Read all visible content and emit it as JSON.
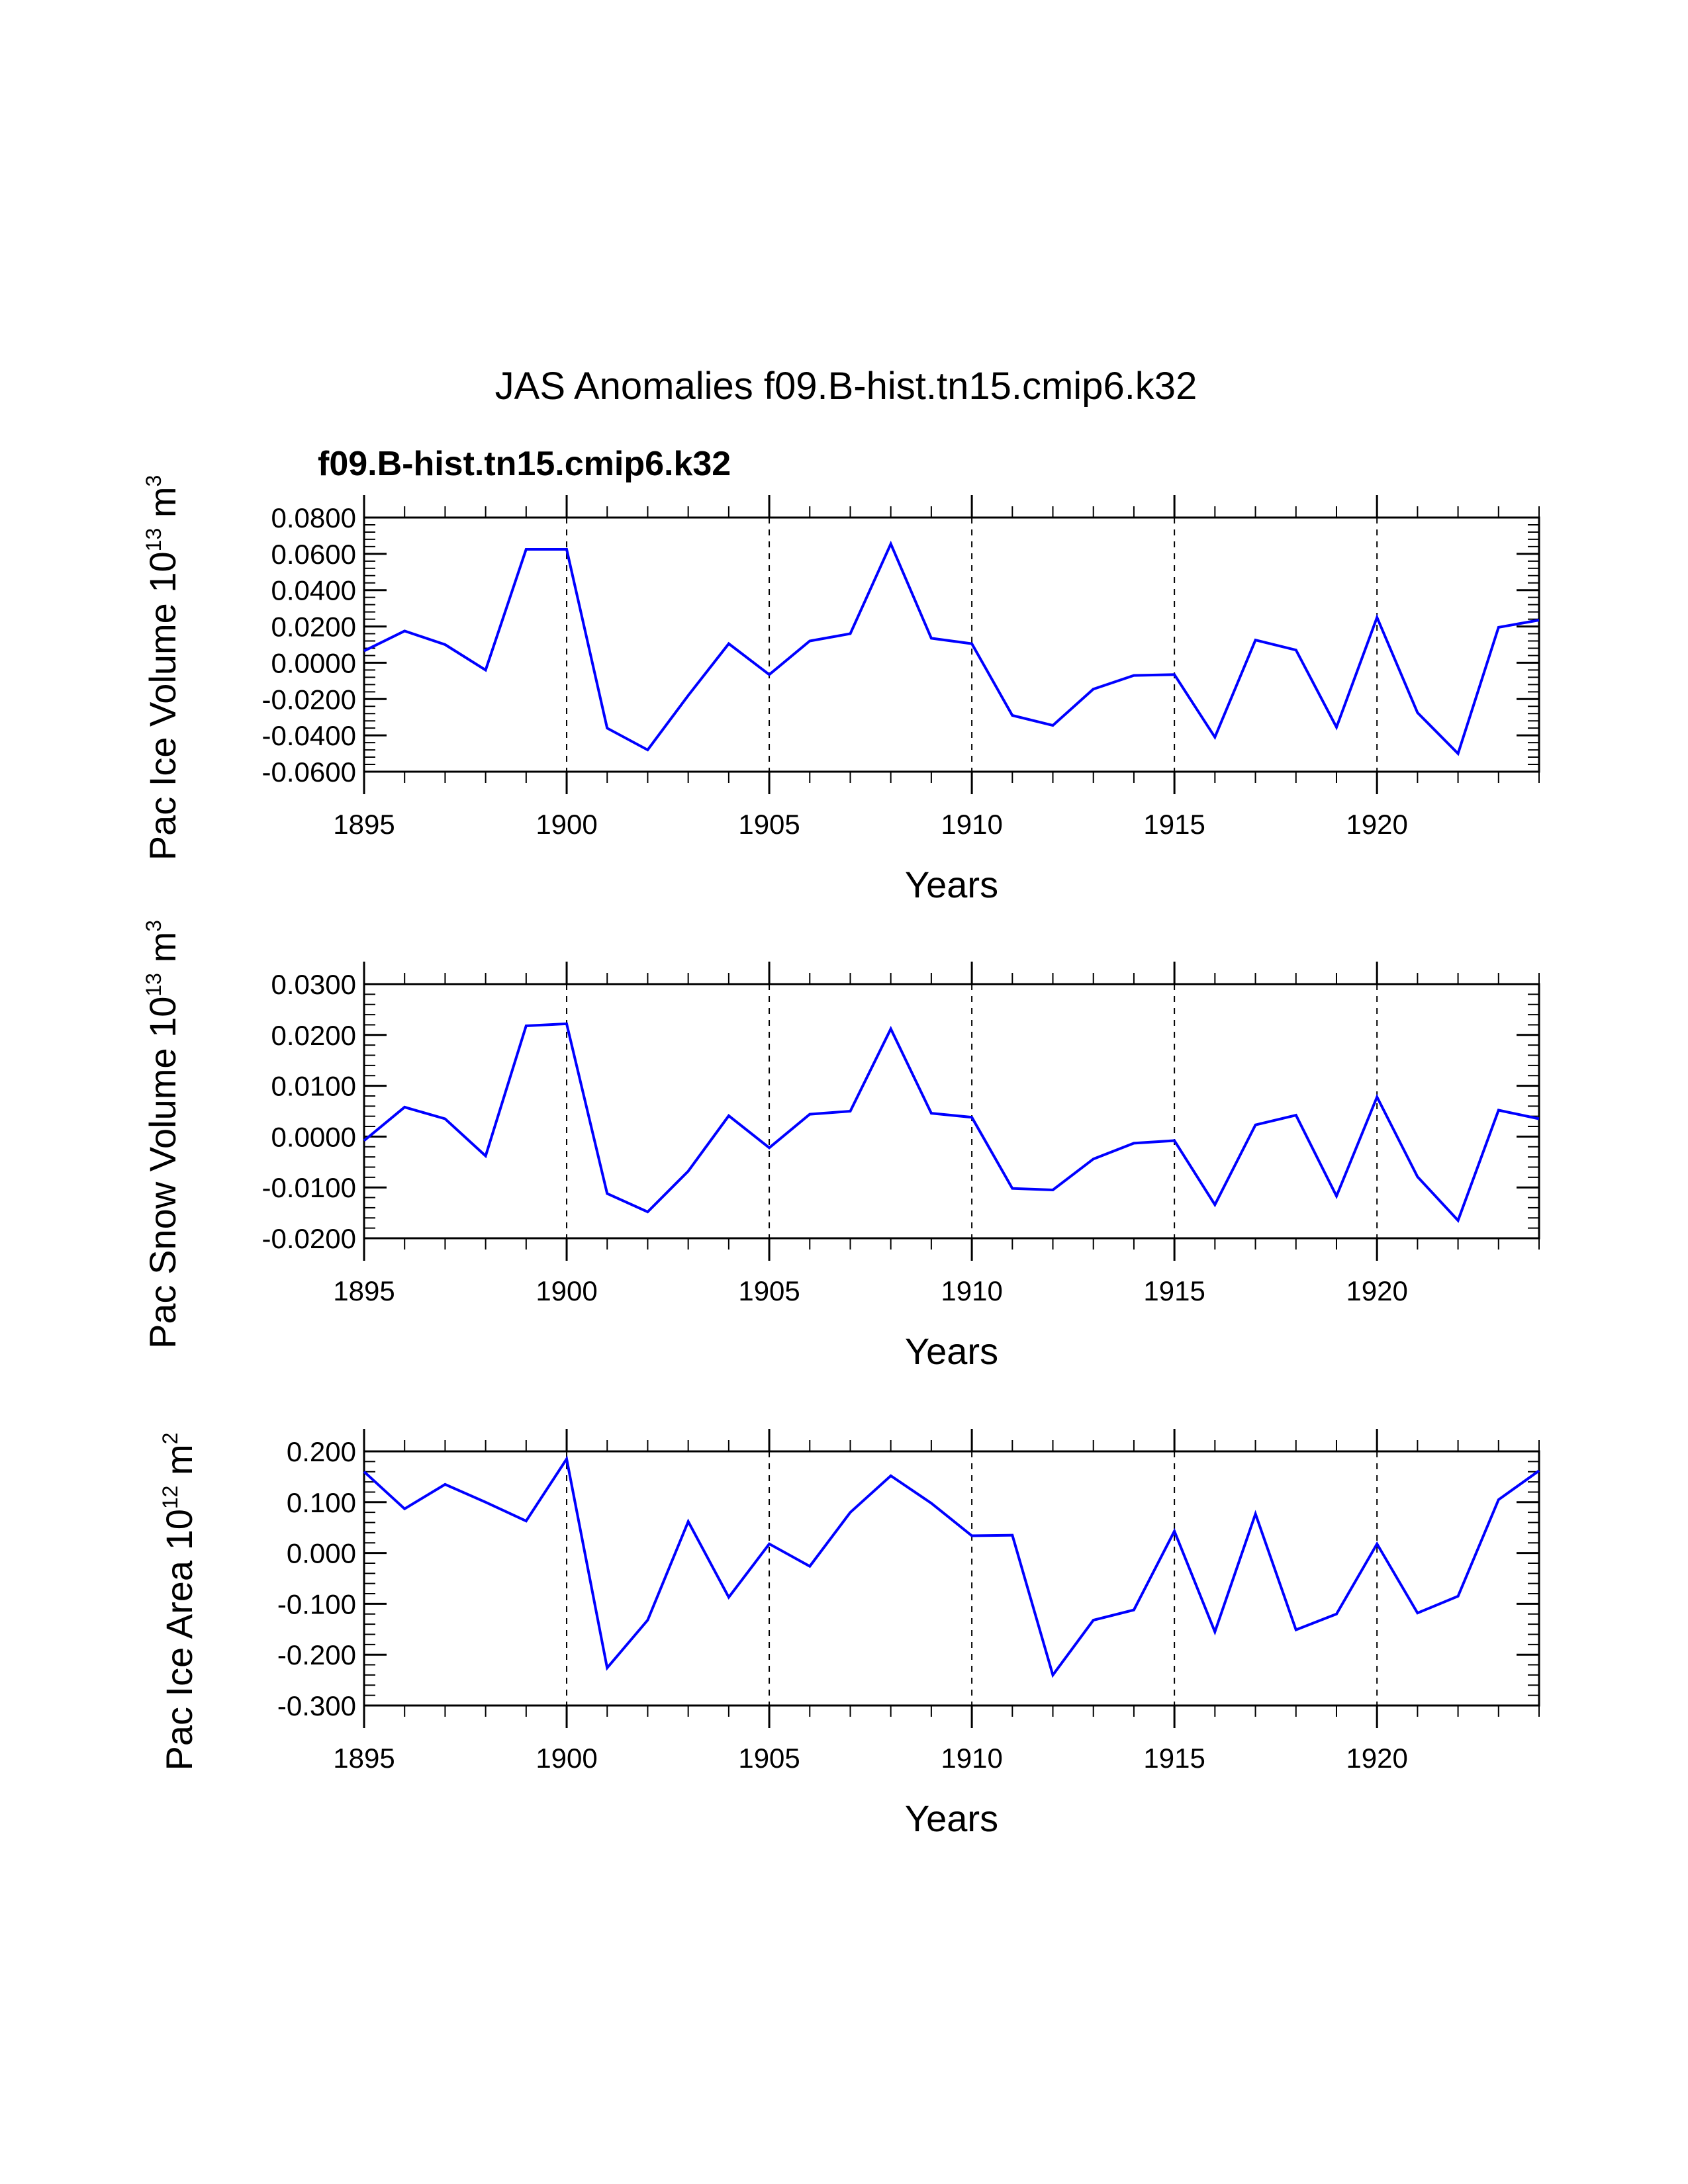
{
  "title": "JAS Anomalies f09.B-hist.tn15.cmip6.k32",
  "subtitle": "f09.B-hist.tn15.cmip6.k32",
  "colors": {
    "series": "#0000ff",
    "subtitle": "#0000ff",
    "axes": "#000000",
    "background": "#ffffff"
  },
  "chart_data": [
    {
      "type": "line",
      "xlabel": "Years",
      "ylabel": {
        "main": "Pac Ice Volume 10",
        "exponent": "13",
        "unit": " m",
        "unit_exponent": "3"
      },
      "xlim": [
        1895,
        1924
      ],
      "ylim": [
        -0.06,
        0.08
      ],
      "xticks": [
        1895,
        1900,
        1905,
        1910,
        1915,
        1920
      ],
      "xtick_labels": [
        "1895",
        "1900",
        "1905",
        "1910",
        "1915",
        "1920"
      ],
      "yticks": [
        -0.06,
        -0.04,
        -0.02,
        0.0,
        0.02,
        0.04,
        0.06,
        0.08
      ],
      "ytick_labels": [
        "-0.0600",
        "-0.0400",
        "-0.0200",
        "0.0000",
        "0.0200",
        "0.0400",
        "0.0600",
        "0.0800"
      ],
      "vlines": [
        1900,
        1905,
        1910,
        1915,
        1920
      ],
      "series": [
        {
          "name": "f09.B-hist.tn15.cmip6.k32",
          "x": [
            1895,
            1896,
            1897,
            1898,
            1899,
            1900,
            1901,
            1902,
            1903,
            1904,
            1905,
            1906,
            1907,
            1908,
            1909,
            1910,
            1911,
            1912,
            1913,
            1914,
            1915,
            1916,
            1917,
            1918,
            1919,
            1920,
            1921,
            1922,
            1923,
            1924
          ],
          "values": [
            0.0065,
            0.0175,
            0.01,
            -0.004,
            0.0625,
            0.0625,
            -0.036,
            -0.048,
            -0.018,
            0.0105,
            -0.0065,
            0.012,
            0.016,
            0.0655,
            0.0135,
            0.0105,
            -0.029,
            -0.0345,
            -0.0145,
            -0.007,
            -0.0065,
            -0.041,
            0.0125,
            0.007,
            -0.0355,
            0.025,
            -0.0275,
            -0.05,
            0.0195,
            0.0235
          ]
        }
      ]
    },
    {
      "type": "line",
      "xlabel": "Years",
      "ylabel": {
        "main": "Pac Snow Volume 10",
        "exponent": "13",
        "unit": " m",
        "unit_exponent": "3"
      },
      "xlim": [
        1895,
        1924
      ],
      "ylim": [
        -0.02,
        0.03
      ],
      "xticks": [
        1895,
        1900,
        1905,
        1910,
        1915,
        1920
      ],
      "xtick_labels": [
        "1895",
        "1900",
        "1905",
        "1910",
        "1915",
        "1920"
      ],
      "yticks": [
        -0.02,
        -0.01,
        0.0,
        0.01,
        0.02,
        0.03
      ],
      "ytick_labels": [
        "-0.0200",
        "-0.0100",
        "0.0000",
        "0.0100",
        "0.0200",
        "0.0300"
      ],
      "vlines": [
        1900,
        1905,
        1910,
        1915,
        1920
      ],
      "series": [
        {
          "name": "f09.B-hist.tn15.cmip6.k32",
          "x": [
            1895,
            1896,
            1897,
            1898,
            1899,
            1900,
            1901,
            1902,
            1903,
            1904,
            1905,
            1906,
            1907,
            1908,
            1909,
            1910,
            1911,
            1912,
            1913,
            1914,
            1915,
            1916,
            1917,
            1918,
            1919,
            1920,
            1921,
            1922,
            1923,
            1924
          ],
          "values": [
            -0.0008,
            0.0058,
            0.0035,
            -0.0038,
            0.0218,
            0.0222,
            -0.0112,
            -0.0148,
            -0.0068,
            0.0041,
            -0.0022,
            0.0044,
            0.005,
            0.0212,
            0.0046,
            0.0038,
            -0.0102,
            -0.0105,
            -0.0044,
            -0.0013,
            -0.0008,
            -0.0134,
            0.0023,
            0.0042,
            -0.0117,
            0.0078,
            -0.0079,
            -0.0165,
            0.0052,
            0.0035
          ]
        }
      ]
    },
    {
      "type": "line",
      "xlabel": "Years",
      "ylabel": {
        "main": "Pac Ice Area 10",
        "exponent": "12",
        "unit": " m",
        "unit_exponent": "2"
      },
      "xlim": [
        1895,
        1924
      ],
      "ylim": [
        -0.3,
        0.2
      ],
      "xticks": [
        1895,
        1900,
        1905,
        1910,
        1915,
        1920
      ],
      "xtick_labels": [
        "1895",
        "1900",
        "1905",
        "1910",
        "1915",
        "1920"
      ],
      "yticks": [
        -0.3,
        -0.2,
        -0.1,
        0.0,
        0.1,
        0.2
      ],
      "ytick_labels": [
        "-0.300",
        "-0.200",
        "-0.100",
        "0.000",
        "0.100",
        "0.200"
      ],
      "vlines": [
        1900,
        1905,
        1910,
        1915,
        1920
      ],
      "series": [
        {
          "name": "f09.B-hist.tn15.cmip6.k32",
          "x": [
            1895,
            1896,
            1897,
            1898,
            1899,
            1900,
            1901,
            1902,
            1903,
            1904,
            1905,
            1906,
            1907,
            1908,
            1909,
            1910,
            1911,
            1912,
            1913,
            1914,
            1915,
            1916,
            1917,
            1918,
            1919,
            1920,
            1921,
            1922,
            1923,
            1924
          ],
          "values": [
            0.16,
            0.087,
            0.135,
            0.1,
            0.063,
            0.185,
            -0.226,
            -0.132,
            0.062,
            -0.087,
            0.018,
            -0.026,
            0.08,
            0.152,
            0.098,
            0.034,
            0.035,
            -0.24,
            -0.132,
            -0.112,
            0.043,
            -0.155,
            0.077,
            -0.151,
            -0.12,
            0.018,
            -0.118,
            -0.085,
            0.105,
            0.162
          ]
        }
      ]
    }
  ]
}
